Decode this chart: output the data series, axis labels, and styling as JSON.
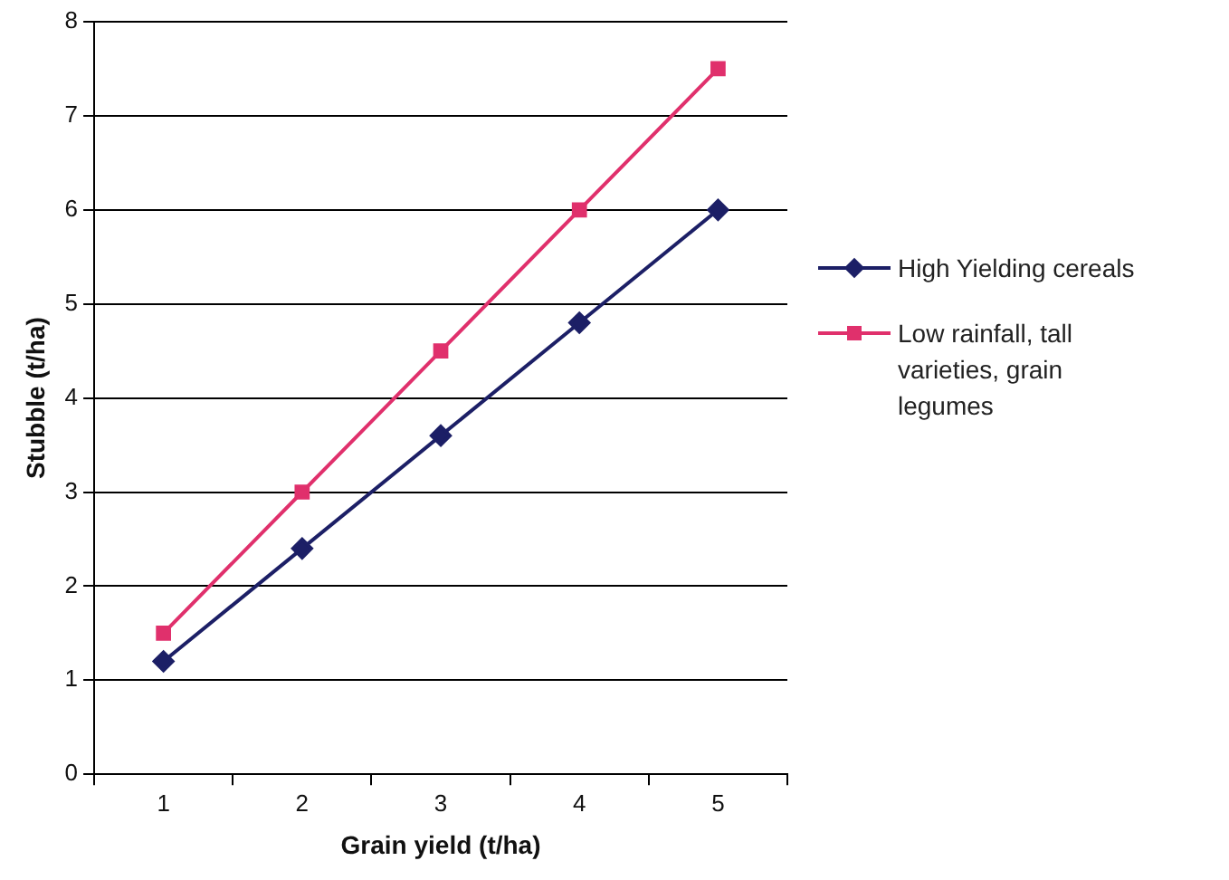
{
  "chart_data": {
    "type": "line",
    "xlabel": "Grain yield (t/ha)",
    "ylabel": "Stubble (t/ha)",
    "categories": [
      "1",
      "2",
      "3",
      "4",
      "5"
    ],
    "series": [
      {
        "name": "High Yielding cereals",
        "color": "#1c1f66",
        "marker": "diamond",
        "values": [
          1.2,
          2.4,
          3.6,
          4.8,
          6.0
        ]
      },
      {
        "name": "Low rainfall, tall varieties, grain legumes",
        "color": "#e0306c",
        "marker": "square",
        "values": [
          1.5,
          3.0,
          4.5,
          6.0,
          7.5
        ]
      }
    ],
    "ylim": [
      0,
      8
    ],
    "yticks": [
      0,
      1,
      2,
      3,
      4,
      5,
      6,
      7,
      8
    ],
    "grid": "y",
    "legend": "right"
  }
}
